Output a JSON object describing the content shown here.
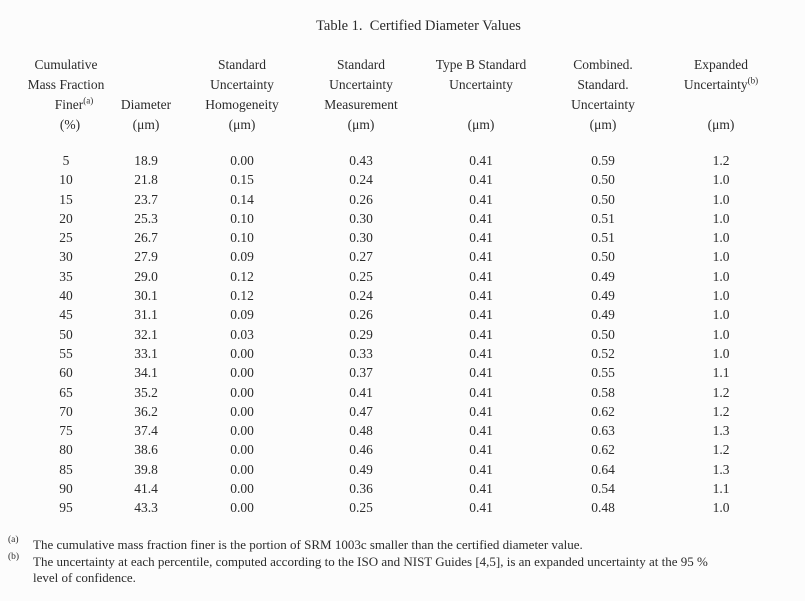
{
  "title": "Table 1.  Certified Diameter Values",
  "table": {
    "columns": [
      {
        "l1": "Cumulative",
        "l2": "Mass Fraction",
        "l3": "Finer",
        "l3_sup": "(a)",
        "unit": "(%)"
      },
      {
        "l1": "",
        "l2": "",
        "l3": "Diameter",
        "unit": "(μm)"
      },
      {
        "l1": "Standard",
        "l2": "Uncertainty",
        "l3": "Homogeneity",
        "unit": "(μm)"
      },
      {
        "l1": "Standard",
        "l2": "Uncertainty",
        "l3": "Measurement",
        "unit": "(μm)"
      },
      {
        "l1": "Type B Standard",
        "l2": "Uncertainty",
        "l3": "",
        "unit": "(μm)"
      },
      {
        "l1": "Combined.",
        "l2": "Standard.",
        "l3": "Uncertainty",
        "unit": "(μm)"
      },
      {
        "l1": "Expanded",
        "l2": "Uncertainty",
        "l2_sup": "(b)",
        "l3": "",
        "unit": "(μm)"
      }
    ],
    "rows": [
      [
        "5",
        "18.9",
        "0.00",
        "0.43",
        "0.41",
        "0.59",
        "1.2"
      ],
      [
        "10",
        "21.8",
        "0.15",
        "0.24",
        "0.41",
        "0.50",
        "1.0"
      ],
      [
        "15",
        "23.7",
        "0.14",
        "0.26",
        "0.41",
        "0.50",
        "1.0"
      ],
      [
        "20",
        "25.3",
        "0.10",
        "0.30",
        "0.41",
        "0.51",
        "1.0"
      ],
      [
        "25",
        "26.7",
        "0.10",
        "0.30",
        "0.41",
        "0.51",
        "1.0"
      ],
      [
        "30",
        "27.9",
        "0.09",
        "0.27",
        "0.41",
        "0.50",
        "1.0"
      ],
      [
        "35",
        "29.0",
        "0.12",
        "0.25",
        "0.41",
        "0.49",
        "1.0"
      ],
      [
        "40",
        "30.1",
        "0.12",
        "0.24",
        "0.41",
        "0.49",
        "1.0"
      ],
      [
        "45",
        "31.1",
        "0.09",
        "0.26",
        "0.41",
        "0.49",
        "1.0"
      ],
      [
        "50",
        "32.1",
        "0.03",
        "0.29",
        "0.41",
        "0.50",
        "1.0"
      ],
      [
        "55",
        "33.1",
        "0.00",
        "0.33",
        "0.41",
        "0.52",
        "1.0"
      ],
      [
        "60",
        "34.1",
        "0.00",
        "0.37",
        "0.41",
        "0.55",
        "1.1"
      ],
      [
        "65",
        "35.2",
        "0.00",
        "0.41",
        "0.41",
        "0.58",
        "1.2"
      ],
      [
        "70",
        "36.2",
        "0.00",
        "0.47",
        "0.41",
        "0.62",
        "1.2"
      ],
      [
        "75",
        "37.4",
        "0.00",
        "0.48",
        "0.41",
        "0.63",
        "1.3"
      ],
      [
        "80",
        "38.6",
        "0.00",
        "0.46",
        "0.41",
        "0.62",
        "1.2"
      ],
      [
        "85",
        "39.8",
        "0.00",
        "0.49",
        "0.41",
        "0.64",
        "1.3"
      ],
      [
        "90",
        "41.4",
        "0.00",
        "0.36",
        "0.41",
        "0.54",
        "1.1"
      ],
      [
        "95",
        "43.3",
        "0.00",
        "0.25",
        "0.41",
        "0.48",
        "1.0"
      ]
    ]
  },
  "footnotes": [
    {
      "marker": "(a)",
      "lines": [
        "The cumulative mass fraction finer is the portion of SRM 1003c smaller than the certified diameter value."
      ]
    },
    {
      "marker": "(b)",
      "lines": [
        "The uncertainty at each percentile, computed according to the ISO and NIST Guides [4,5], is an expanded uncertainty at the 95 %",
        "level of confidence."
      ]
    }
  ],
  "colors": {
    "text": "#2b2b2b",
    "background": "#fcfcfc"
  }
}
